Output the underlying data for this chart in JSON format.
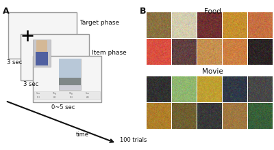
{
  "panel_A_label": "A",
  "panel_B_label": "B",
  "food_label": "Food",
  "movie_label": "Movie",
  "target_phase_label": "Target phase",
  "item_phase_label": "Item phase",
  "sec1_label": "3 sec",
  "sec2_label": "3 sec",
  "sec3_label": "0~5 sec",
  "time_label": "time",
  "trials_label": "100 trials",
  "bg_color": "#ffffff",
  "box_color": "#999999",
  "box_face": "#f5f5f5",
  "arrow_color": "#111111",
  "text_color": "#111111"
}
